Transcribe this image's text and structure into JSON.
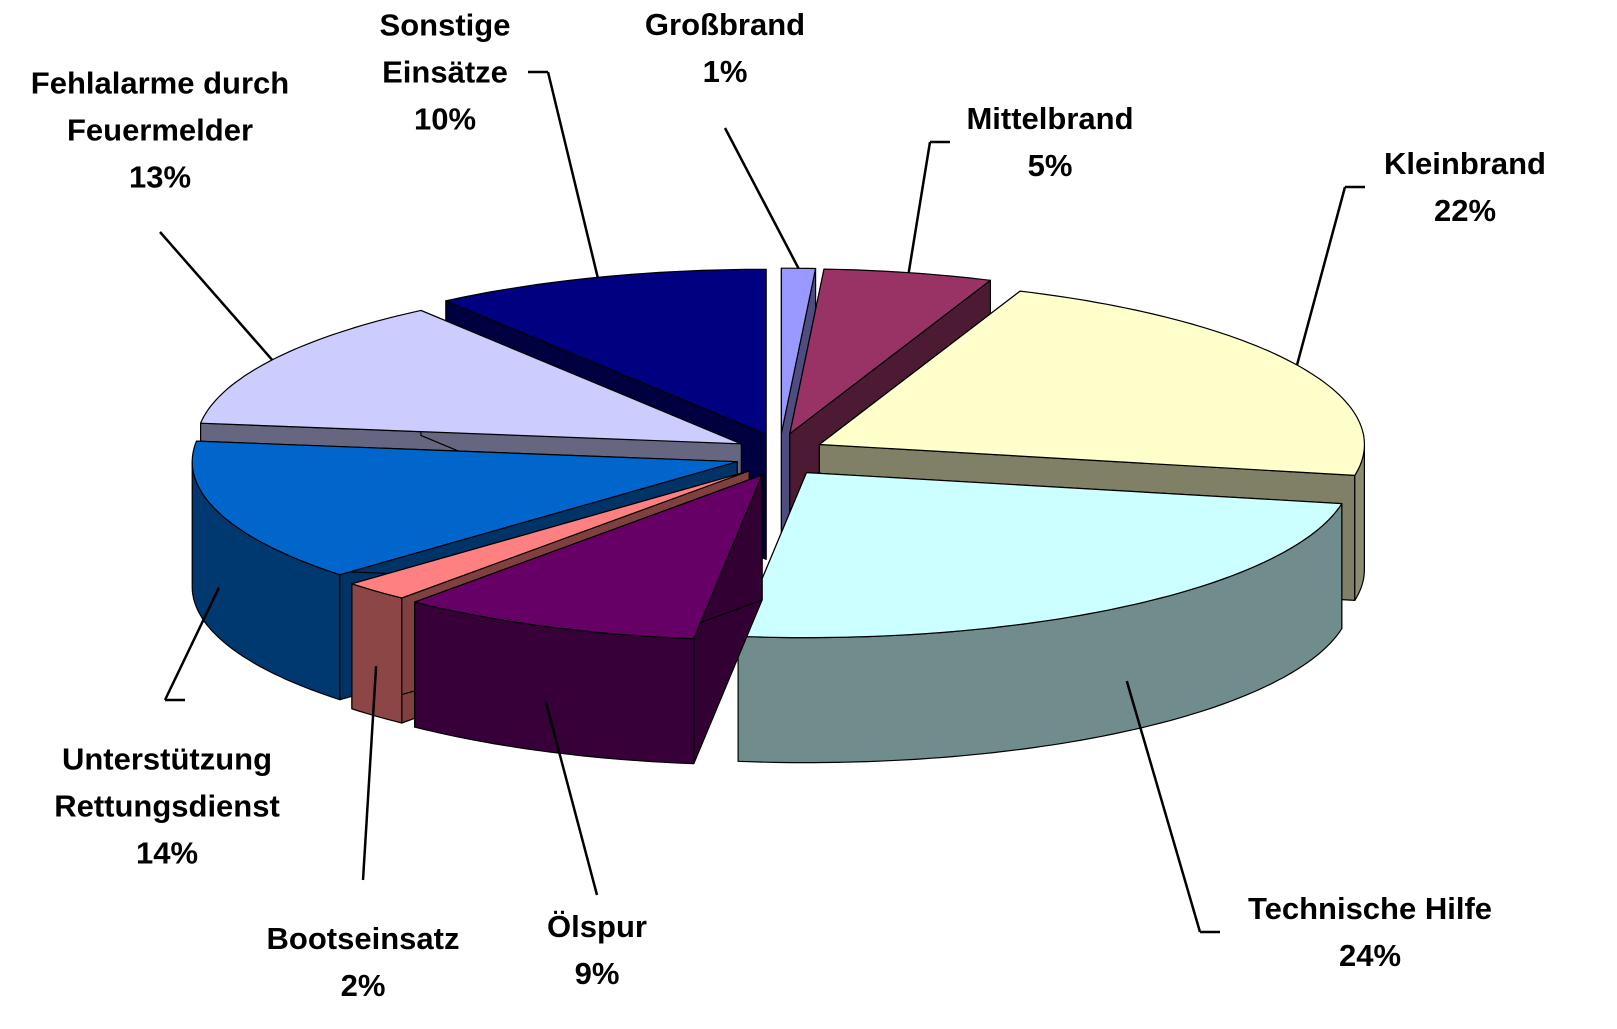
{
  "chart_data": {
    "type": "pie3d",
    "categories": [
      "Großbrand",
      "Mittelbrand",
      "Kleinbrand",
      "Technische Hilfe",
      "Ölspur",
      "Bootseinsatz",
      "Unterstützung Rettungsdienst",
      "Fehlalarme durch Feuermelder",
      "Sonstige Einsätze"
    ],
    "values": [
      1,
      5,
      22,
      24,
      9,
      2,
      14,
      13,
      10
    ],
    "value_labels": [
      "1%",
      "5%",
      "22%",
      "24%",
      "9%",
      "2%",
      "14%",
      "13%",
      "10%"
    ],
    "colors": [
      "#9999ff",
      "#993366",
      "#ffffcc",
      "#ccffff",
      "#660066",
      "#ff8080",
      "#0066cc",
      "#ccccff",
      "#000080"
    ]
  }
}
